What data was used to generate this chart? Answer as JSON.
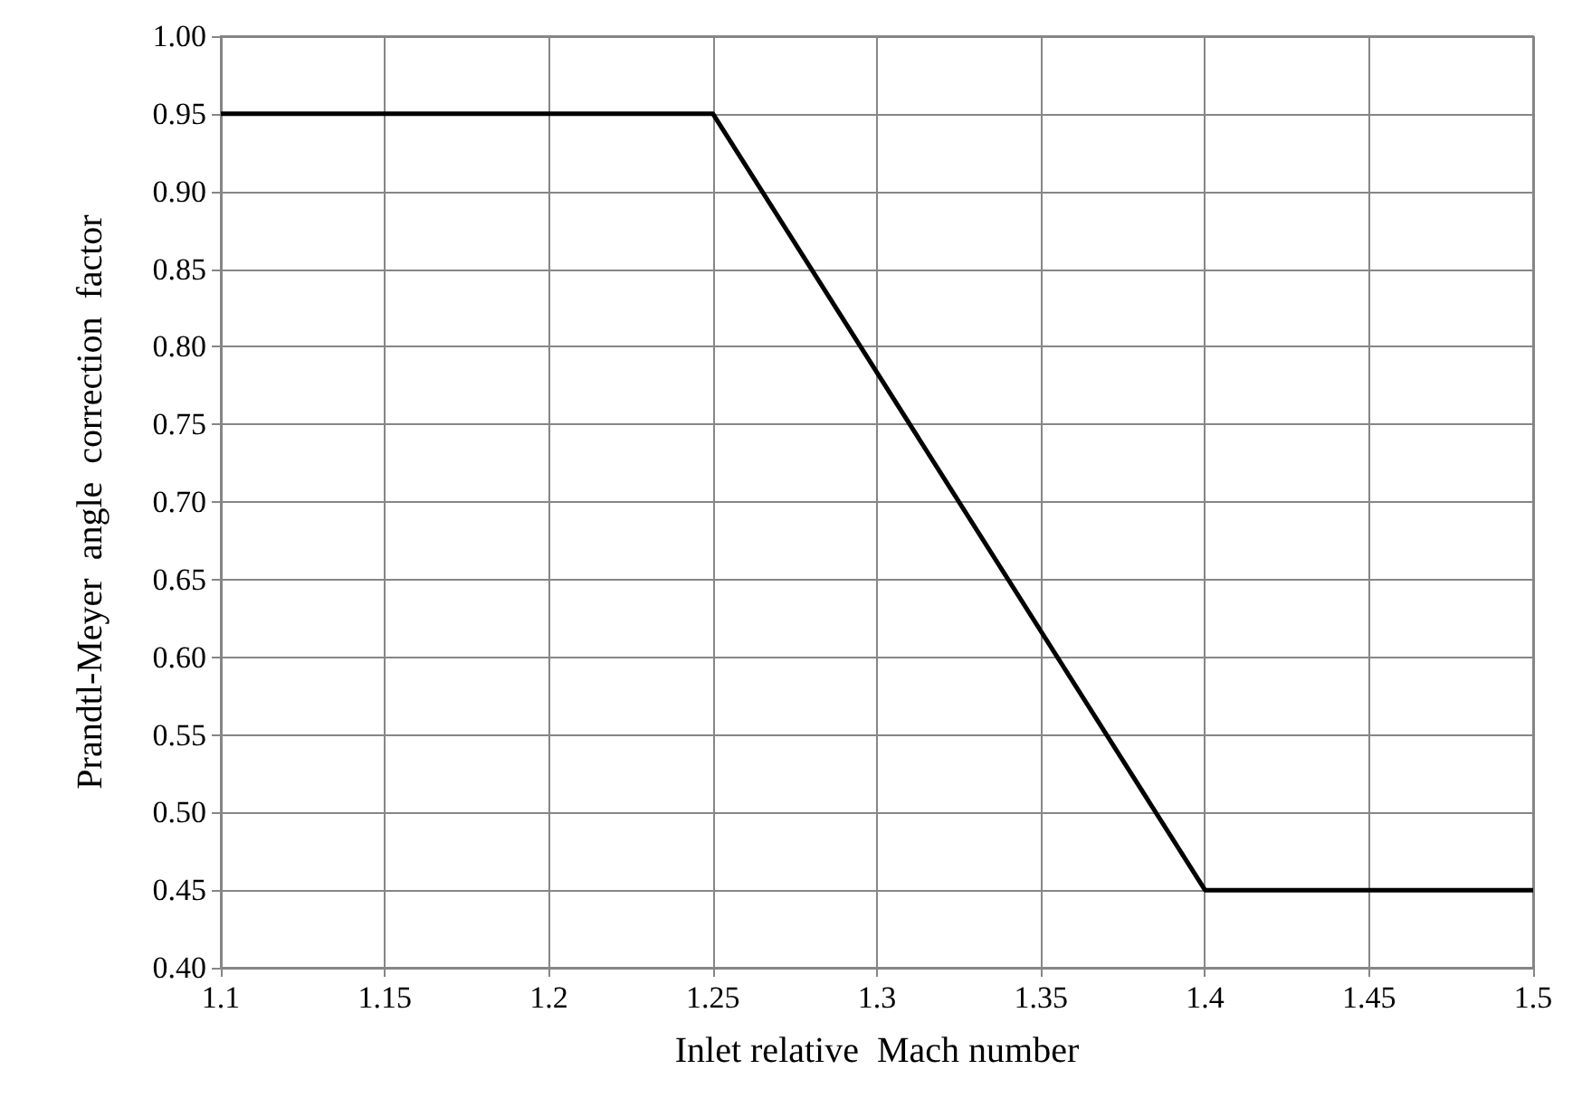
{
  "chart_data": {
    "type": "line",
    "xlabel": "Inlet relative  Mach number",
    "ylabel": "Prandtl-Meyer  angle  correction  factor",
    "x": [
      1.1,
      1.25,
      1.4,
      1.5
    ],
    "series": [
      {
        "color": "#000000",
        "values": [
          0.95,
          0.95,
          0.45,
          0.45
        ]
      }
    ],
    "xlim": [
      1.1,
      1.5
    ],
    "xticks": [
      1.1,
      1.15,
      1.2,
      1.25,
      1.3,
      1.35,
      1.4,
      1.45,
      1.5
    ],
    "ylim": [
      0.4,
      1.0
    ],
    "yticks": [
      {
        "value": 0.4,
        "label": "0.40"
      },
      0.45,
      {
        "value": 0.5,
        "label": "0.50"
      },
      0.55,
      {
        "value": 0.6,
        "label": "0.60"
      },
      0.65,
      {
        "value": 0.7,
        "label": "0.70"
      },
      0.75,
      {
        "value": 0.8,
        "label": "0.80"
      },
      0.85,
      {
        "value": 0.9,
        "label": "0.90"
      },
      0.95,
      {
        "value": 1.0,
        "label": "1.00"
      }
    ],
    "grid": true,
    "marker": "none",
    "line_style": "solid"
  }
}
